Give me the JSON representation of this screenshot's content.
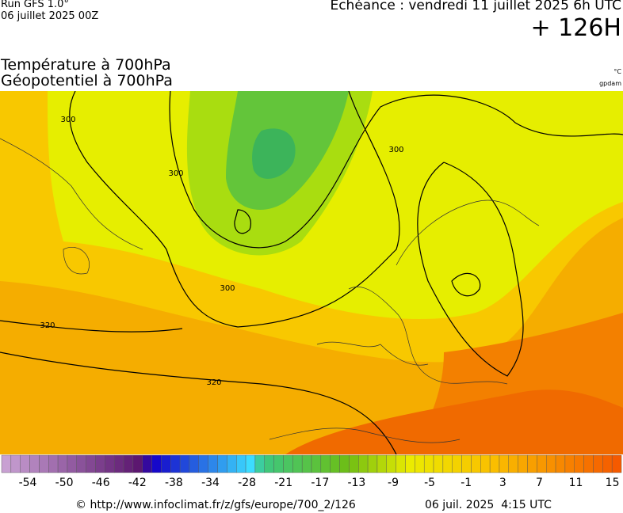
{
  "header": {
    "run": "Run GFS 1.0°",
    "run_date": "06 juillet 2025 00Z",
    "valid": "Echéance : vendredi 11 juillet 2025 6h UTC",
    "lead": "+ 126H",
    "title_line1": "Température à 700hPa",
    "title_line2": "Géopotentiel à 700hPa",
    "unit_temp": "°C",
    "unit_geo": "gpdam"
  },
  "map": {
    "contour_labels": [
      "300",
      "300",
      "300",
      "300",
      "320",
      "320"
    ]
  },
  "colorbar": {
    "labels": [
      -54,
      -50,
      -46,
      -42,
      -38,
      -34,
      -28,
      -21,
      -17,
      -13,
      -9,
      -5,
      -1,
      3,
      7,
      11,
      15
    ]
  },
  "footer": {
    "source": "© http://www.infoclimat.fr/z/gfs/europe/700_2/126",
    "generated": "06 juil. 2025  4:15 UTC"
  }
}
